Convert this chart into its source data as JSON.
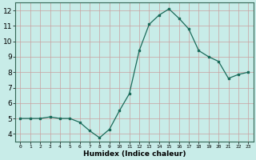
{
  "x": [
    0,
    1,
    2,
    3,
    4,
    5,
    6,
    7,
    8,
    9,
    10,
    11,
    12,
    13,
    14,
    15,
    16,
    17,
    18,
    19,
    20,
    21,
    22,
    23
  ],
  "y": [
    5.0,
    5.0,
    5.0,
    5.1,
    5.0,
    5.0,
    4.75,
    4.2,
    3.75,
    4.3,
    5.5,
    6.6,
    9.4,
    11.1,
    11.7,
    12.1,
    11.5,
    10.8,
    9.4,
    9.0,
    8.7,
    7.6,
    7.85,
    8.0
  ],
  "line_color": "#1a6b5a",
  "marker_color": "#1a6b5a",
  "bg_color": "#c8ece8",
  "grid_major_color": "#b0d8d4",
  "grid_minor_color": "#d0ecea",
  "xlabel": "Humidex (Indice chaleur)",
  "ylim": [
    3.5,
    12.5
  ],
  "xlim": [
    -0.5,
    23.5
  ],
  "yticks": [
    4,
    5,
    6,
    7,
    8,
    9,
    10,
    11,
    12
  ],
  "xticks": [
    0,
    1,
    2,
    3,
    4,
    5,
    6,
    7,
    8,
    9,
    10,
    11,
    12,
    13,
    14,
    15,
    16,
    17,
    18,
    19,
    20,
    21,
    22,
    23
  ]
}
